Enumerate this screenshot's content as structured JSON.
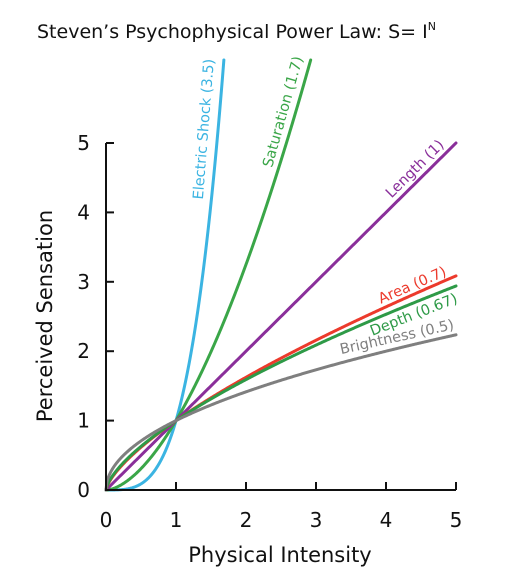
{
  "chart_data": {
    "type": "line",
    "title": "Steven’s Psychophysical Power Law: S= I",
    "title_superscript": "N",
    "xlabel": "Physical Intensity",
    "ylabel": "Perceived Sensation",
    "xlim": [
      0,
      5
    ],
    "ylim": [
      0,
      5
    ],
    "xticks": [
      "0",
      "1",
      "2",
      "3",
      "4",
      "5"
    ],
    "yticks": [
      "0",
      "1",
      "2",
      "3",
      "4",
      "5"
    ],
    "grid": false,
    "legend": "inline labels along curves",
    "series": [
      {
        "name": "Electric Shock (3.5)",
        "exponent": 3.5,
        "color": "#3bb4e2"
      },
      {
        "name": "Saturation (1.7)",
        "exponent": 1.7,
        "color": "#3aa648"
      },
      {
        "name": "Length (1)",
        "exponent": 1.0,
        "color": "#8a2f9a"
      },
      {
        "name": "Area (0.7)",
        "exponent": 0.7,
        "color": "#ec3a2c"
      },
      {
        "name": "Depth (0.67)",
        "exponent": 0.67,
        "color": "#2e9a47"
      },
      {
        "name": "Brightness (0.5)",
        "exponent": 0.5,
        "color": "#7f7f7f"
      }
    ]
  }
}
